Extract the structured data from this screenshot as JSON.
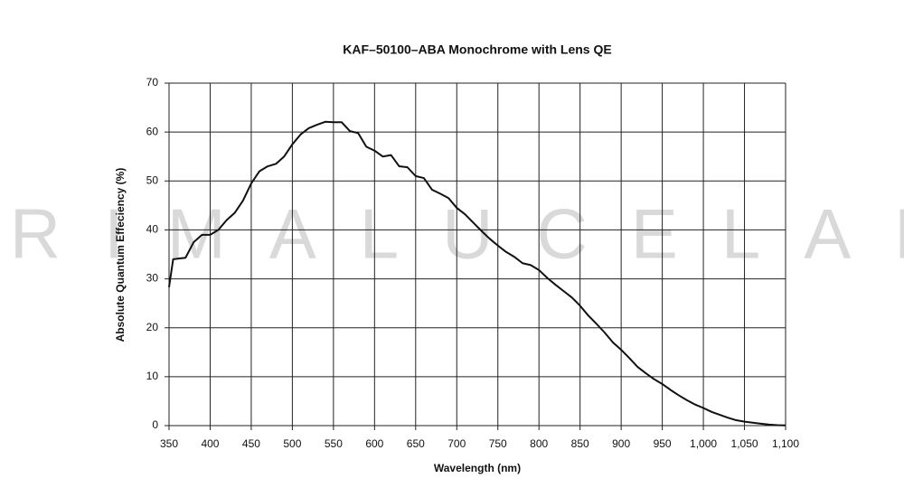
{
  "chart_data": {
    "type": "line",
    "title": "KAF–50100–ABA Monochrome with Lens QE",
    "watermark": "PRIMALUCELAB",
    "x_label": "Wavelength (nm)",
    "y_label": "Absolute Quantum Effeciency (%)",
    "x": [
      350,
      355,
      370,
      380,
      390,
      400,
      410,
      420,
      430,
      440,
      450,
      460,
      470,
      480,
      490,
      500,
      510,
      520,
      530,
      540,
      550,
      560,
      570,
      580,
      590,
      600,
      610,
      620,
      630,
      640,
      650,
      660,
      670,
      680,
      690,
      700,
      710,
      720,
      730,
      740,
      750,
      760,
      770,
      780,
      790,
      800,
      810,
      820,
      830,
      840,
      850,
      860,
      870,
      880,
      890,
      900,
      910,
      920,
      930,
      940,
      950,
      960,
      970,
      980,
      990,
      1000,
      1010,
      1020,
      1030,
      1040,
      1050,
      1060,
      1070,
      1080,
      1090,
      1100
    ],
    "series": [
      {
        "name": "QE",
        "color": "#111111",
        "values": [
          28.3,
          34,
          34.3,
          37.5,
          39,
          39,
          40,
          42,
          43.5,
          46,
          49.5,
          52,
          53,
          53.5,
          55,
          57.5,
          59.5,
          60.8,
          61.5,
          62.1,
          62,
          62,
          60.2,
          59.8,
          57,
          56.2,
          55,
          55.3,
          53,
          52.8,
          51,
          50.6,
          48.2,
          47.4,
          46.5,
          44.5,
          43.2,
          41.5,
          39.8,
          38.2,
          36.8,
          35.5,
          34.5,
          33.2,
          32.8,
          31.8,
          30.2,
          28.8,
          27.5,
          26.2,
          24.5,
          22.5,
          20.8,
          19,
          17,
          15.5,
          13.8,
          12,
          10.7,
          9.5,
          8.5,
          7.3,
          6.2,
          5.2,
          4.3,
          3.6,
          2.8,
          2.2,
          1.6,
          1.1,
          0.8,
          0.6,
          0.4,
          0.2,
          0.1,
          0.05
        ]
      }
    ],
    "xlim": [
      350,
      1100
    ],
    "xticks": [
      350,
      400,
      450,
      500,
      550,
      600,
      650,
      700,
      750,
      800,
      850,
      900,
      950,
      {
        "value": 1000,
        "label": "1,000"
      },
      {
        "value": 1050,
        "label": "1,050"
      },
      {
        "value": 1100,
        "label": "1,100"
      }
    ],
    "ylim": [
      0,
      70
    ],
    "yticks": [
      0,
      10,
      20,
      30,
      40,
      50,
      60,
      70
    ],
    "grid": true
  }
}
